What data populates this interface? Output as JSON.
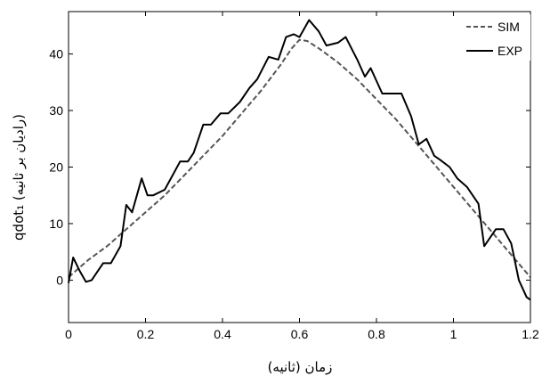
{
  "chart_data": {
    "type": "line",
    "xlabel": "زمان (ثانیه)",
    "ylabel": "qdot₁ (رادیان بر ثانیه)",
    "xlim": [
      0,
      1.2
    ],
    "ylim": [
      -7.5,
      47.5
    ],
    "x_ticks": [
      "0",
      "0.2",
      "0.4",
      "0.6",
      "0.8",
      "1",
      "1.2"
    ],
    "y_ticks": [
      "0",
      "10",
      "20",
      "30",
      "40"
    ],
    "x_tick_values": [
      0,
      0.2,
      0.4,
      0.6,
      0.8,
      1.0,
      1.2
    ],
    "y_tick_values": [
      0,
      10,
      20,
      30,
      40
    ],
    "grid": false,
    "legend_position": "top-right",
    "series": [
      {
        "name": "SIM",
        "style": "dashed",
        "color": "#555555",
        "x": [
          0,
          0.05,
          0.1,
          0.15,
          0.2,
          0.25,
          0.3,
          0.35,
          0.4,
          0.45,
          0.5,
          0.55,
          0.58,
          0.6,
          0.62,
          0.65,
          0.7,
          0.75,
          0.8,
          0.85,
          0.9,
          0.95,
          1.0,
          1.05,
          1.1,
          1.15,
          1.2
        ],
        "y": [
          0.5,
          3.5,
          6.0,
          9.0,
          12.0,
          15.0,
          18.5,
          22.0,
          25.5,
          29.5,
          33.5,
          38.0,
          41.0,
          42.5,
          42.3,
          41.0,
          38.5,
          35.5,
          32.0,
          28.5,
          24.5,
          20.5,
          16.5,
          12.5,
          8.5,
          4.5,
          0.5
        ]
      },
      {
        "name": "EXP",
        "style": "solid",
        "color": "#000000",
        "x": [
          0,
          0.012,
          0.03,
          0.045,
          0.06,
          0.075,
          0.09,
          0.11,
          0.135,
          0.15,
          0.165,
          0.19,
          0.205,
          0.22,
          0.25,
          0.27,
          0.29,
          0.31,
          0.325,
          0.35,
          0.37,
          0.395,
          0.415,
          0.445,
          0.47,
          0.49,
          0.52,
          0.545,
          0.565,
          0.585,
          0.6,
          0.625,
          0.65,
          0.67,
          0.7,
          0.72,
          0.75,
          0.77,
          0.785,
          0.815,
          0.84,
          0.865,
          0.89,
          0.91,
          0.93,
          0.95,
          0.965,
          0.99,
          1.01,
          1.035,
          1.065,
          1.08,
          1.11,
          1.13,
          1.15,
          1.17,
          1.19,
          1.2
        ],
        "y": [
          -0.5,
          4.0,
          1.5,
          -0.3,
          0.0,
          1.5,
          3.0,
          3.0,
          6.0,
          13.3,
          12.0,
          18.0,
          15.0,
          15.0,
          16.0,
          18.5,
          21.0,
          21.0,
          22.5,
          27.5,
          27.5,
          29.5,
          29.5,
          31.5,
          34.0,
          35.5,
          39.5,
          39.0,
          43.0,
          43.5,
          43.0,
          46.0,
          44.0,
          41.5,
          42.0,
          43.0,
          39.0,
          36.0,
          37.5,
          33.0,
          33.0,
          33.0,
          29.0,
          24.0,
          25.0,
          22.0,
          21.3,
          20.0,
          18.0,
          16.5,
          13.5,
          6.0,
          9.0,
          9.0,
          6.5,
          0.0,
          -3.0,
          -3.5
        ]
      }
    ]
  }
}
